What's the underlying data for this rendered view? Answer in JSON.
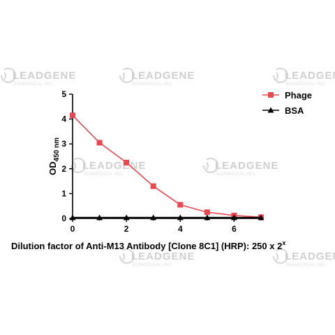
{
  "watermark": {
    "text": "LEADGENE",
    "subtext": "BIOMEDICAL INC."
  },
  "chart_data": {
    "type": "line",
    "x": [
      0,
      1,
      2,
      3,
      4,
      5,
      6,
      7
    ],
    "series": [
      {
        "name": "Phage",
        "values": [
          4.15,
          3.05,
          2.25,
          1.3,
          0.55,
          0.25,
          0.12,
          0.05
        ],
        "color": "#e8484f",
        "marker": "square"
      },
      {
        "name": "BSA",
        "values": [
          0.03,
          0.03,
          0.03,
          0.03,
          0.03,
          0.03,
          0.03,
          0.03
        ],
        "color": "#000000",
        "marker": "triangle"
      }
    ],
    "xlim": [
      0,
      7
    ],
    "ylim": [
      0,
      5
    ],
    "xticks": [
      "0",
      "2",
      "4",
      "6"
    ],
    "yticks": [
      "0",
      "1",
      "2",
      "3",
      "4",
      "5"
    ],
    "ylabel": {
      "main": "OD",
      "sub": "450 nm"
    },
    "xlabel": {
      "main": "Dilution factor of  Anti-M13 Antibody [Clone 8C1] (HRP): 250 x 2",
      "sup": "x"
    },
    "legend_position": "top-right",
    "grid": false
  }
}
